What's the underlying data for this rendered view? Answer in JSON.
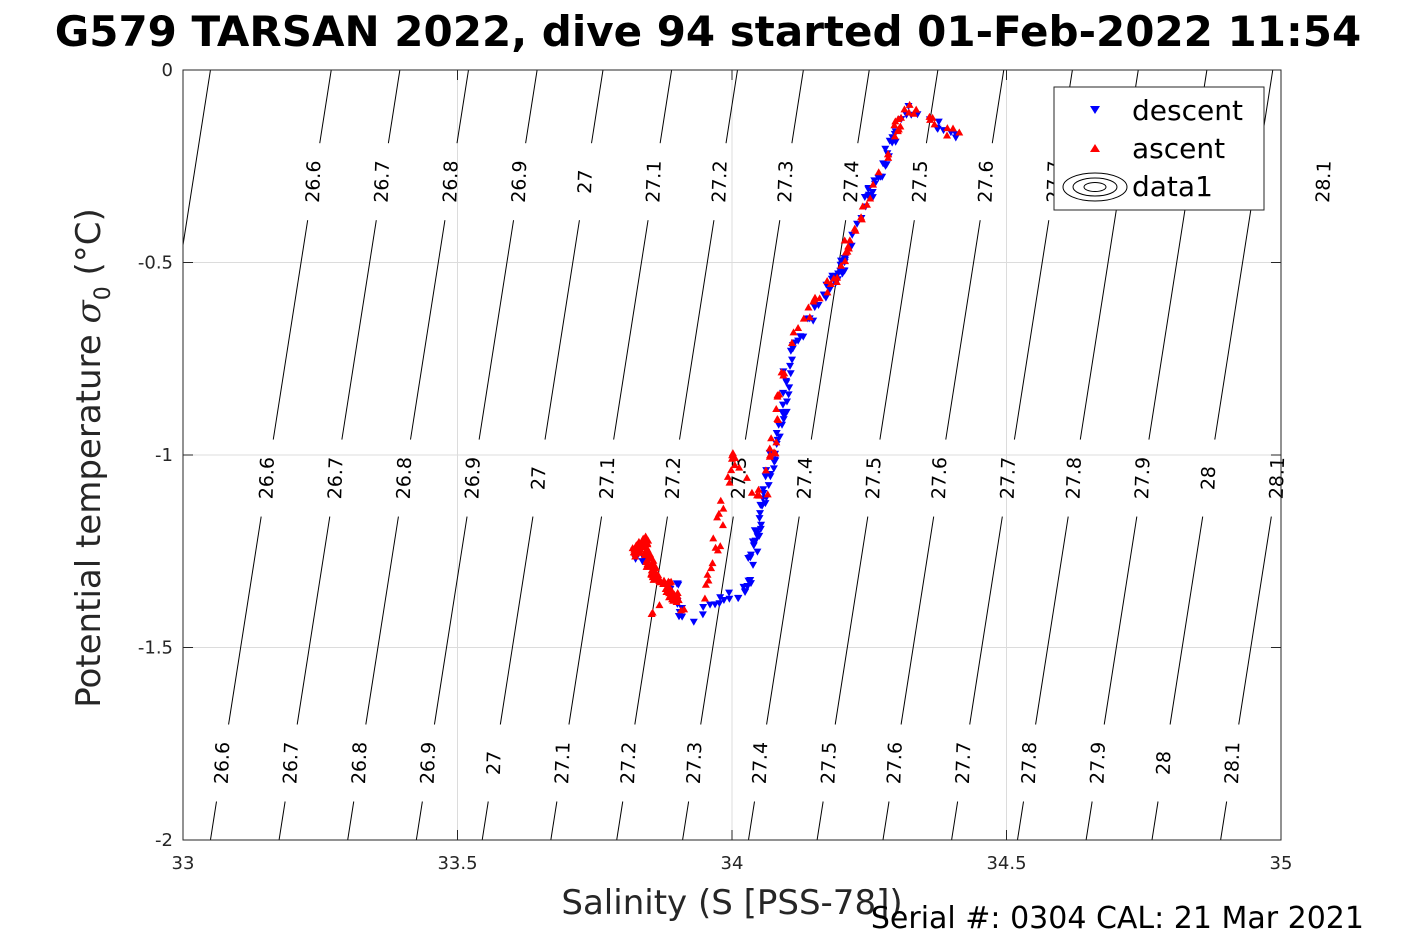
{
  "figure": {
    "title": "G579 TARSAN 2022, dive 94 started 01-Feb-2022 11:54",
    "footer": "Serial #: 0304  CAL: 21 Mar 2021"
  },
  "chart_data": {
    "type": "scatter",
    "title": "G579 TARSAN 2022, dive 94 started 01-Feb-2022 11:54",
    "xlabel": "Salinity (S [PSS-78])",
    "ylabel_main": "Potential temperature ",
    "ylabel_sigma": "σ",
    "ylabel_sub": "0",
    "ylabel_unit": " (°C)",
    "xlim": [
      33,
      35
    ],
    "ylim": [
      -2,
      0
    ],
    "xticks": [
      33,
      33.5,
      34,
      34.5,
      35
    ],
    "xtick_labels": [
      "33",
      "33.5",
      "34",
      "34.5",
      "35"
    ],
    "yticks": [
      0,
      -0.5,
      -1,
      -1.5,
      -2
    ],
    "ytick_labels": [
      "0",
      "-0.5",
      "-1",
      "-1.5",
      "-2"
    ],
    "grid": true,
    "legend_position": "top-right",
    "legend": [
      "descent",
      "ascent",
      "data1"
    ],
    "colors": {
      "descent": "#0000ff",
      "ascent": "#ff0000",
      "contour": "#000000",
      "grid": "#dcdcdc"
    },
    "series": [
      {
        "name": "descent",
        "marker": "triangle-down",
        "path": [
          [
            33.82,
            -1.24
          ],
          [
            33.85,
            -1.3
          ],
          [
            33.88,
            -1.36
          ],
          [
            33.9,
            -1.34
          ],
          [
            33.91,
            -1.42
          ],
          [
            33.92,
            -1.44
          ],
          [
            33.94,
            -1.41
          ],
          [
            33.96,
            -1.38
          ],
          [
            33.99,
            -1.37
          ],
          [
            34.02,
            -1.36
          ],
          [
            34.03,
            -1.32
          ],
          [
            34.06,
            -1.1
          ],
          [
            34.08,
            -0.96
          ],
          [
            34.1,
            -0.84
          ],
          [
            34.1,
            -0.78
          ],
          [
            34.12,
            -0.7
          ],
          [
            34.16,
            -0.6
          ],
          [
            34.2,
            -0.52
          ],
          [
            34.22,
            -0.42
          ],
          [
            34.26,
            -0.3
          ],
          [
            34.29,
            -0.2
          ],
          [
            34.32,
            -0.1
          ],
          [
            34.34,
            -0.12
          ],
          [
            34.37,
            -0.14
          ],
          [
            34.41,
            -0.17
          ]
        ],
        "count": 180
      },
      {
        "name": "ascent",
        "marker": "triangle-up",
        "path": [
          [
            33.84,
            -1.41
          ],
          [
            33.86,
            -1.4
          ],
          [
            33.88,
            -1.38
          ],
          [
            33.91,
            -1.4
          ],
          [
            33.94,
            -1.39
          ],
          [
            33.96,
            -1.33
          ],
          [
            33.97,
            -1.25
          ],
          [
            33.98,
            -1.15
          ],
          [
            34.0,
            -1.06
          ],
          [
            34.0,
            -1.0
          ],
          [
            34.02,
            -1.05
          ],
          [
            34.04,
            -1.1
          ],
          [
            34.06,
            -1.1
          ],
          [
            34.08,
            -0.93
          ],
          [
            34.09,
            -0.83
          ],
          [
            34.1,
            -0.75
          ],
          [
            34.12,
            -0.68
          ],
          [
            34.15,
            -0.6
          ],
          [
            34.19,
            -0.54
          ],
          [
            34.21,
            -0.46
          ],
          [
            34.24,
            -0.36
          ],
          [
            34.27,
            -0.27
          ],
          [
            34.29,
            -0.18
          ],
          [
            34.32,
            -0.1
          ],
          [
            34.34,
            -0.11
          ],
          [
            34.37,
            -0.14
          ],
          [
            34.41,
            -0.17
          ]
        ],
        "extra_paths": [
          [
            [
              33.82,
              -1.26
            ],
            [
              33.83,
              -1.24
            ],
            [
              33.84,
              -1.22
            ],
            [
              33.85,
              -1.28
            ],
            [
              33.86,
              -1.32
            ],
            [
              33.88,
              -1.33
            ],
            [
              33.9,
              -1.38
            ]
          ]
        ],
        "count": 220
      }
    ],
    "contours": {
      "levels": [
        26.6,
        26.7,
        26.8,
        26.9,
        27,
        27.1,
        27.2,
        27.3,
        27.4,
        27.5,
        27.6,
        27.7,
        27.8,
        27.9,
        28,
        28.1
      ],
      "labels": [
        "26.6",
        "26.7",
        "26.8",
        "26.9",
        "27",
        "27.1",
        "27.2",
        "27.3",
        "27.4",
        "27.5",
        "27.6",
        "27.7",
        "27.8",
        "27.9",
        "28",
        "28.1"
      ],
      "salinity_at_bottom": [
        33.05,
        33.175,
        33.3,
        33.425,
        33.545,
        33.67,
        33.79,
        33.91,
        34.03,
        34.155,
        34.275,
        34.4,
        34.52,
        34.645,
        34.765,
        34.89
      ],
      "salinity_at_top": [
        33.27,
        33.395,
        33.52,
        33.645,
        33.765,
        33.89,
        34.01,
        34.13,
        34.25,
        34.375,
        34.495,
        34.62,
        34.74,
        34.865,
        34.985,
        35.11
      ],
      "extra_line": {
        "salinity_at_bottom": 32.83,
        "salinity_at_top": 33.05
      },
      "label_rows": [
        {
          "temperature": -1.8,
          "labels": [
            "26.6",
            "26.7",
            "26.8",
            "26.9",
            "27",
            "27.1",
            "27.2",
            "27.3",
            "27.4",
            "27.5",
            "27.6",
            "27.7",
            "27.8",
            "27.9",
            "28",
            "28.1"
          ]
        },
        {
          "temperature": -1.06,
          "labels": [
            "26.6",
            "26.7",
            "26.8",
            "26.9",
            "27",
            "27.1",
            "27.2",
            "27.3",
            "27.4",
            "27.5",
            "27.6",
            "27.7",
            "27.8",
            "27.9",
            "28",
            "28.1"
          ]
        },
        {
          "temperature": -0.29,
          "labels": [
            "26.6",
            "26.7",
            "26.8",
            "26.9",
            "27",
            "27.1",
            "27.2",
            "27.3",
            "27.4",
            "27.5",
            "27.6",
            "27.7",
            "28.1"
          ]
        }
      ]
    }
  }
}
